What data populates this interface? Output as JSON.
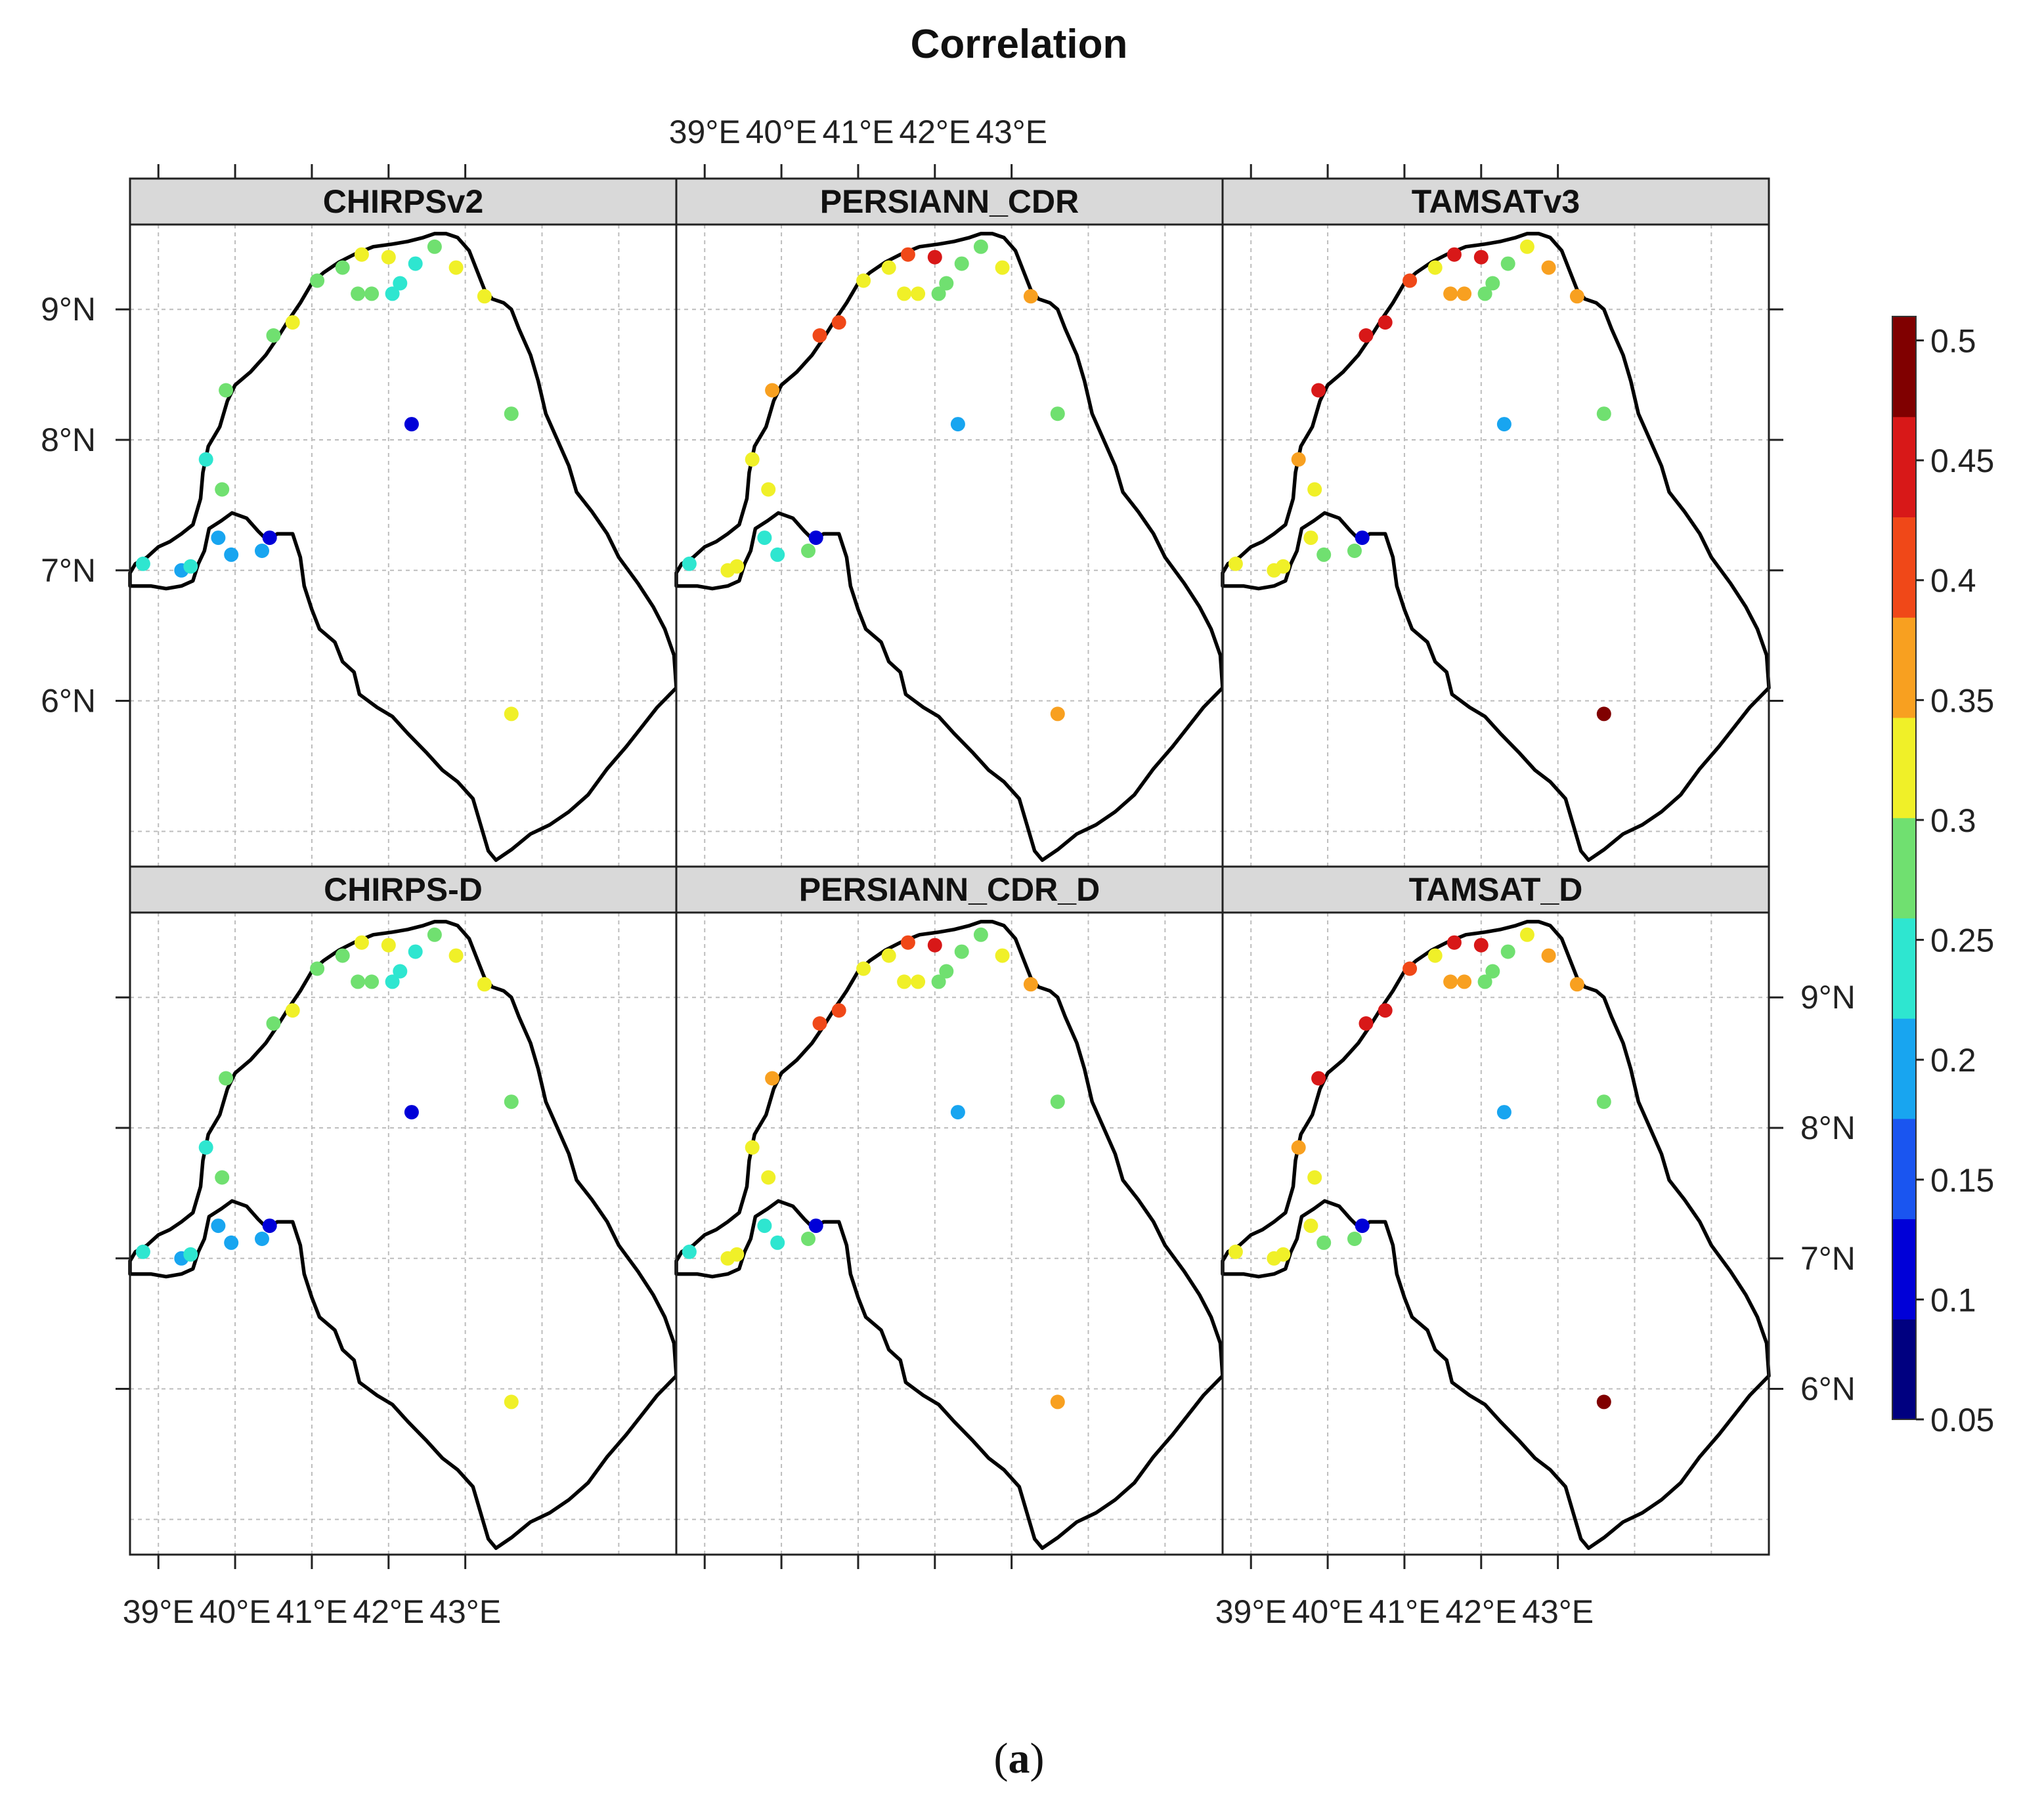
{
  "title": "Correlation",
  "caption": {
    "open": "(",
    "label": "a",
    "close": ")"
  },
  "panels": [
    {
      "name": "CHIRPSv2",
      "palette_index": 0
    },
    {
      "name": "PERSIANN_CDR",
      "palette_index": 1
    },
    {
      "name": "TAMSATv3",
      "palette_index": 2
    },
    {
      "name": "CHIRPS-D",
      "palette_index": 0
    },
    {
      "name": "PERSIANN_CDR_D",
      "palette_index": 1
    },
    {
      "name": "TAMSAT_D",
      "palette_index": 2
    }
  ],
  "axes": {
    "lon_labels": [
      "39°E",
      "40°E",
      "41°E",
      "42°E",
      "43°E"
    ],
    "lon_values": [
      39,
      40,
      41,
      42,
      43
    ],
    "lat_labels": [
      "6°N",
      "7°N",
      "8°N",
      "9°N"
    ],
    "lat_values": [
      6,
      7,
      8,
      9
    ],
    "lon_range": [
      38.63,
      45.75
    ],
    "lat_range": [
      4.73,
      9.65
    ]
  },
  "colorbar": {
    "tick_labels": [
      "0.05",
      "0.1",
      "0.15",
      "0.2",
      "0.25",
      "0.3",
      "0.35",
      "0.4",
      "0.45",
      "0.5"
    ],
    "range": [
      0.05,
      0.51
    ],
    "colors": [
      "#000080",
      "#0000d8",
      "#1a55f0",
      "#18a5f0",
      "#2ee6d0",
      "#70e070",
      "#f0f028",
      "#f8a020",
      "#f04818",
      "#d81818",
      "#800000"
    ]
  },
  "stations": [
    [
      38.8,
      7.05
    ],
    [
      39.3,
      7.0
    ],
    [
      39.42,
      7.03
    ],
    [
      39.62,
      7.85
    ],
    [
      39.83,
      7.62
    ],
    [
      39.78,
      7.25
    ],
    [
      39.95,
      7.12
    ],
    [
      40.35,
      7.15
    ],
    [
      40.45,
      7.25
    ],
    [
      39.88,
      8.38
    ],
    [
      40.5,
      8.8
    ],
    [
      40.75,
      8.9
    ],
    [
      41.07,
      9.22
    ],
    [
      41.4,
      9.32
    ],
    [
      41.65,
      9.42
    ],
    [
      41.6,
      9.12
    ],
    [
      41.78,
      9.12
    ],
    [
      42.0,
      9.4
    ],
    [
      42.05,
      9.12
    ],
    [
      42.15,
      9.2
    ],
    [
      42.35,
      9.35
    ],
    [
      42.6,
      9.48
    ],
    [
      42.88,
      9.32
    ],
    [
      43.25,
      9.1
    ],
    [
      42.3,
      8.12
    ],
    [
      43.6,
      8.2
    ],
    [
      43.6,
      5.9
    ]
  ],
  "station_values": [
    [
      0.22,
      0.21,
      0.24,
      0.22,
      0.28,
      0.19,
      0.18,
      0.21,
      0.11,
      0.28,
      0.28,
      0.31,
      0.28,
      0.27,
      0.32,
      0.27,
      0.28,
      0.34,
      0.22,
      0.25,
      0.23,
      0.28,
      0.33,
      0.33,
      0.13,
      0.28,
      0.33
    ],
    [
      0.25,
      0.33,
      0.34,
      0.33,
      0.32,
      0.25,
      0.22,
      0.27,
      0.12,
      0.38,
      0.41,
      0.4,
      0.32,
      0.32,
      0.4,
      0.33,
      0.33,
      0.43,
      0.26,
      0.28,
      0.28,
      0.29,
      0.33,
      0.38,
      0.18,
      0.29,
      0.38
    ],
    [
      0.32,
      0.32,
      0.34,
      0.38,
      0.33,
      0.31,
      0.28,
      0.27,
      0.13,
      0.43,
      0.44,
      0.45,
      0.4,
      0.34,
      0.44,
      0.38,
      0.38,
      0.45,
      0.27,
      0.28,
      0.28,
      0.33,
      0.38,
      0.38,
      0.18,
      0.28,
      0.48
    ]
  ]
}
